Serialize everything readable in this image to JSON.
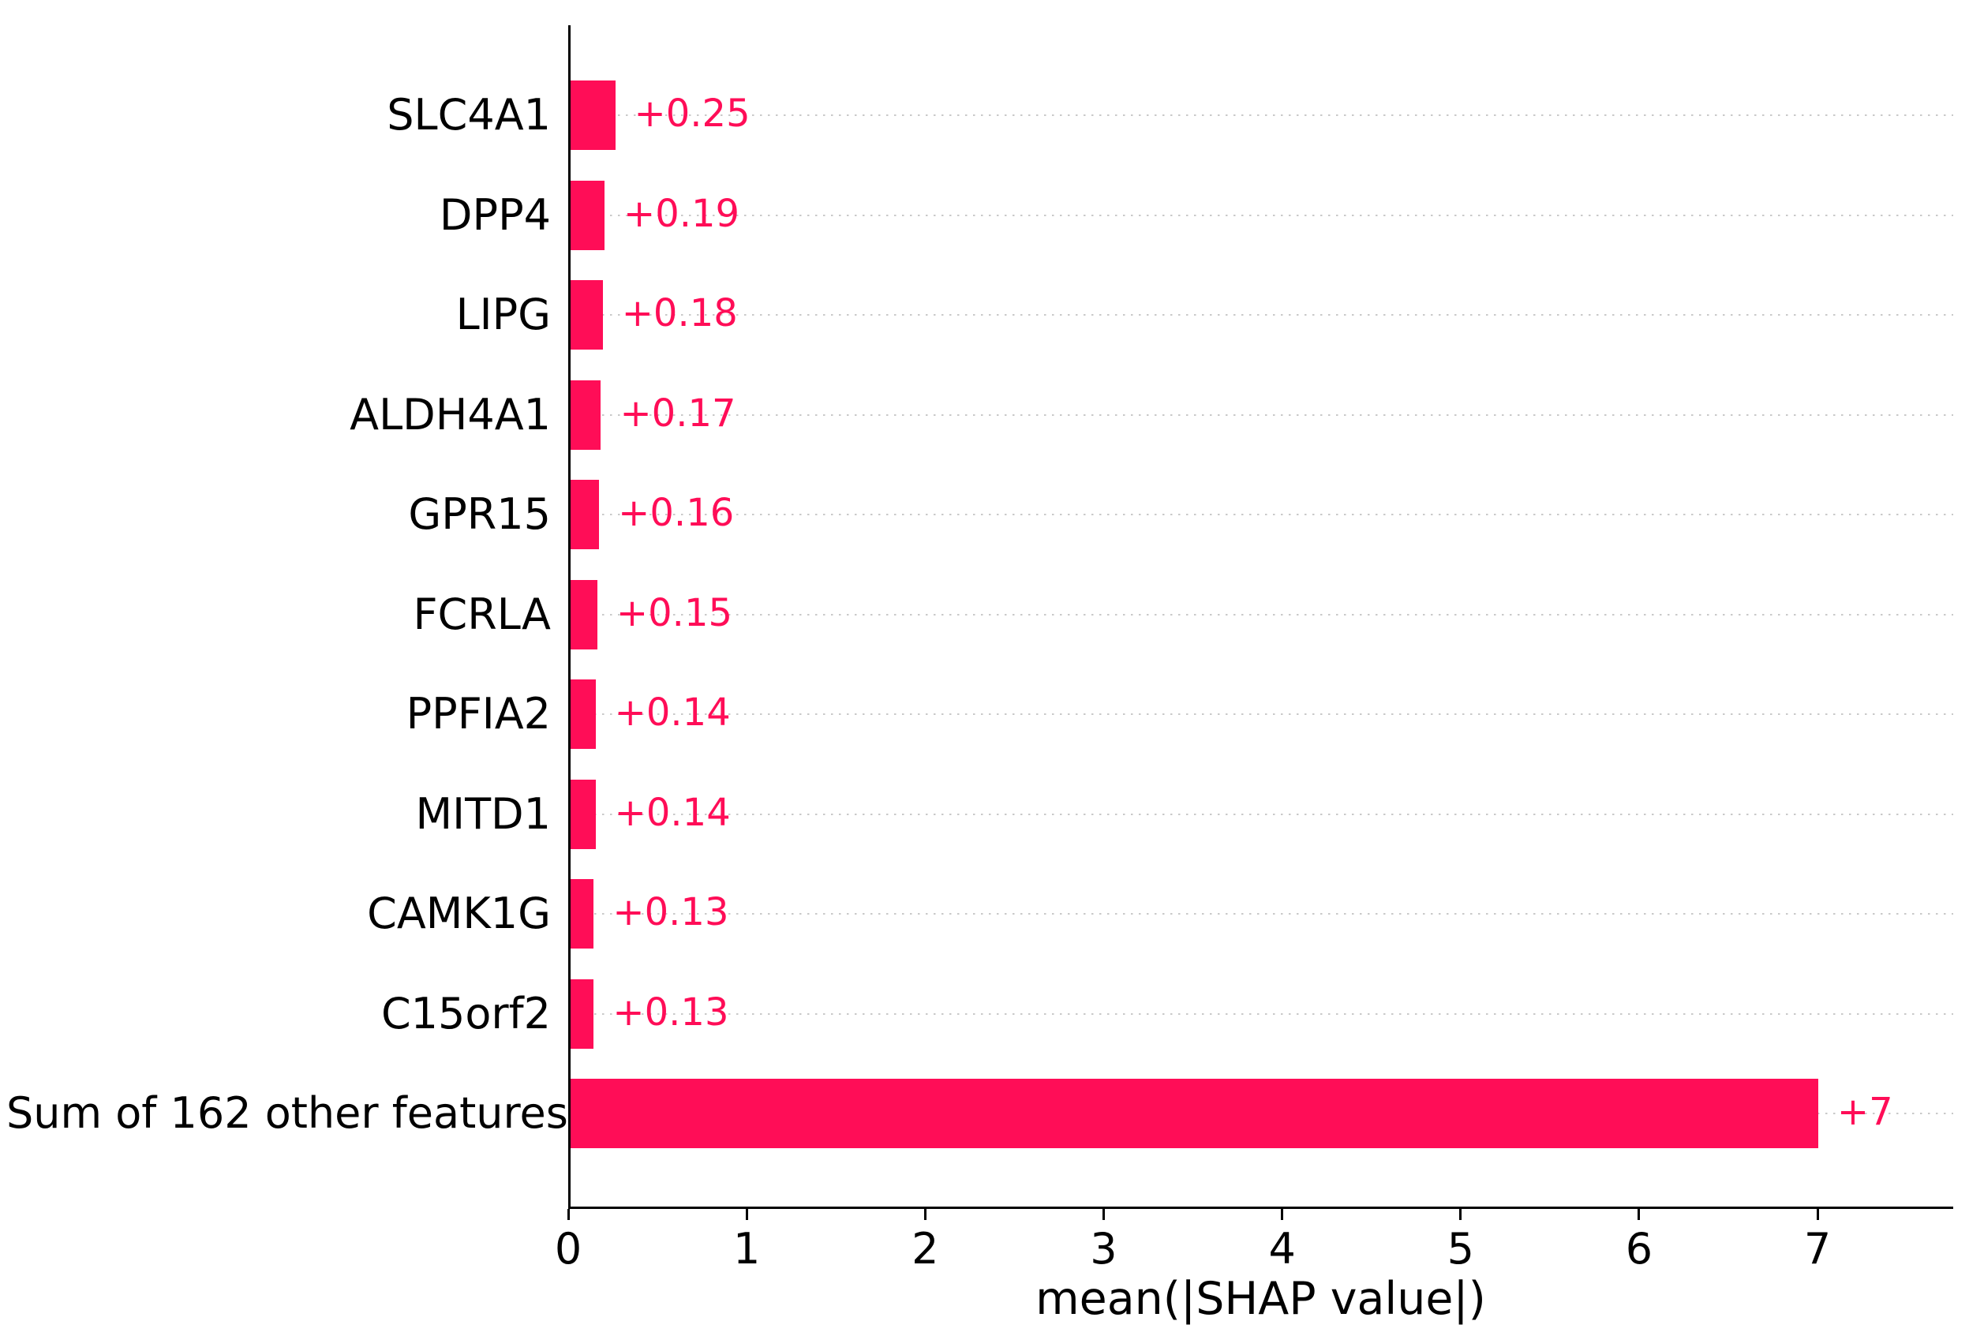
{
  "chart_data": {
    "type": "bar",
    "orientation": "horizontal",
    "title": "",
    "xlabel": "mean(|SHAP value|)",
    "ylabel": "",
    "categories": [
      "SLC4A1",
      "DPP4",
      "LIPG",
      "ALDH4A1",
      "GPR15",
      "FCRLA",
      "PPFIA2",
      "MITD1",
      "CAMK1G",
      "C15orf2",
      "Sum of 162 other features"
    ],
    "values": [
      0.25,
      0.19,
      0.18,
      0.17,
      0.16,
      0.15,
      0.14,
      0.14,
      0.13,
      0.13,
      6.99
    ],
    "bar_labels": [
      "+0.25",
      "+0.19",
      "+0.18",
      "+0.17",
      "+0.16",
      "+0.15",
      "+0.14",
      "+0.14",
      "+0.13",
      "+0.13",
      "+7"
    ],
    "x_ticks": [
      "0",
      "1",
      "2",
      "3",
      "4",
      "5",
      "6",
      "7"
    ],
    "xlim": [
      0,
      7.76
    ],
    "grid": "dotted horizontal line per row, light gray, behind bars",
    "legend": "none",
    "bar_color": "#ff0d57",
    "value_label_color": "#ff0d57",
    "axis_color": "#000000",
    "gridline_color": "#c9c9c9"
  }
}
